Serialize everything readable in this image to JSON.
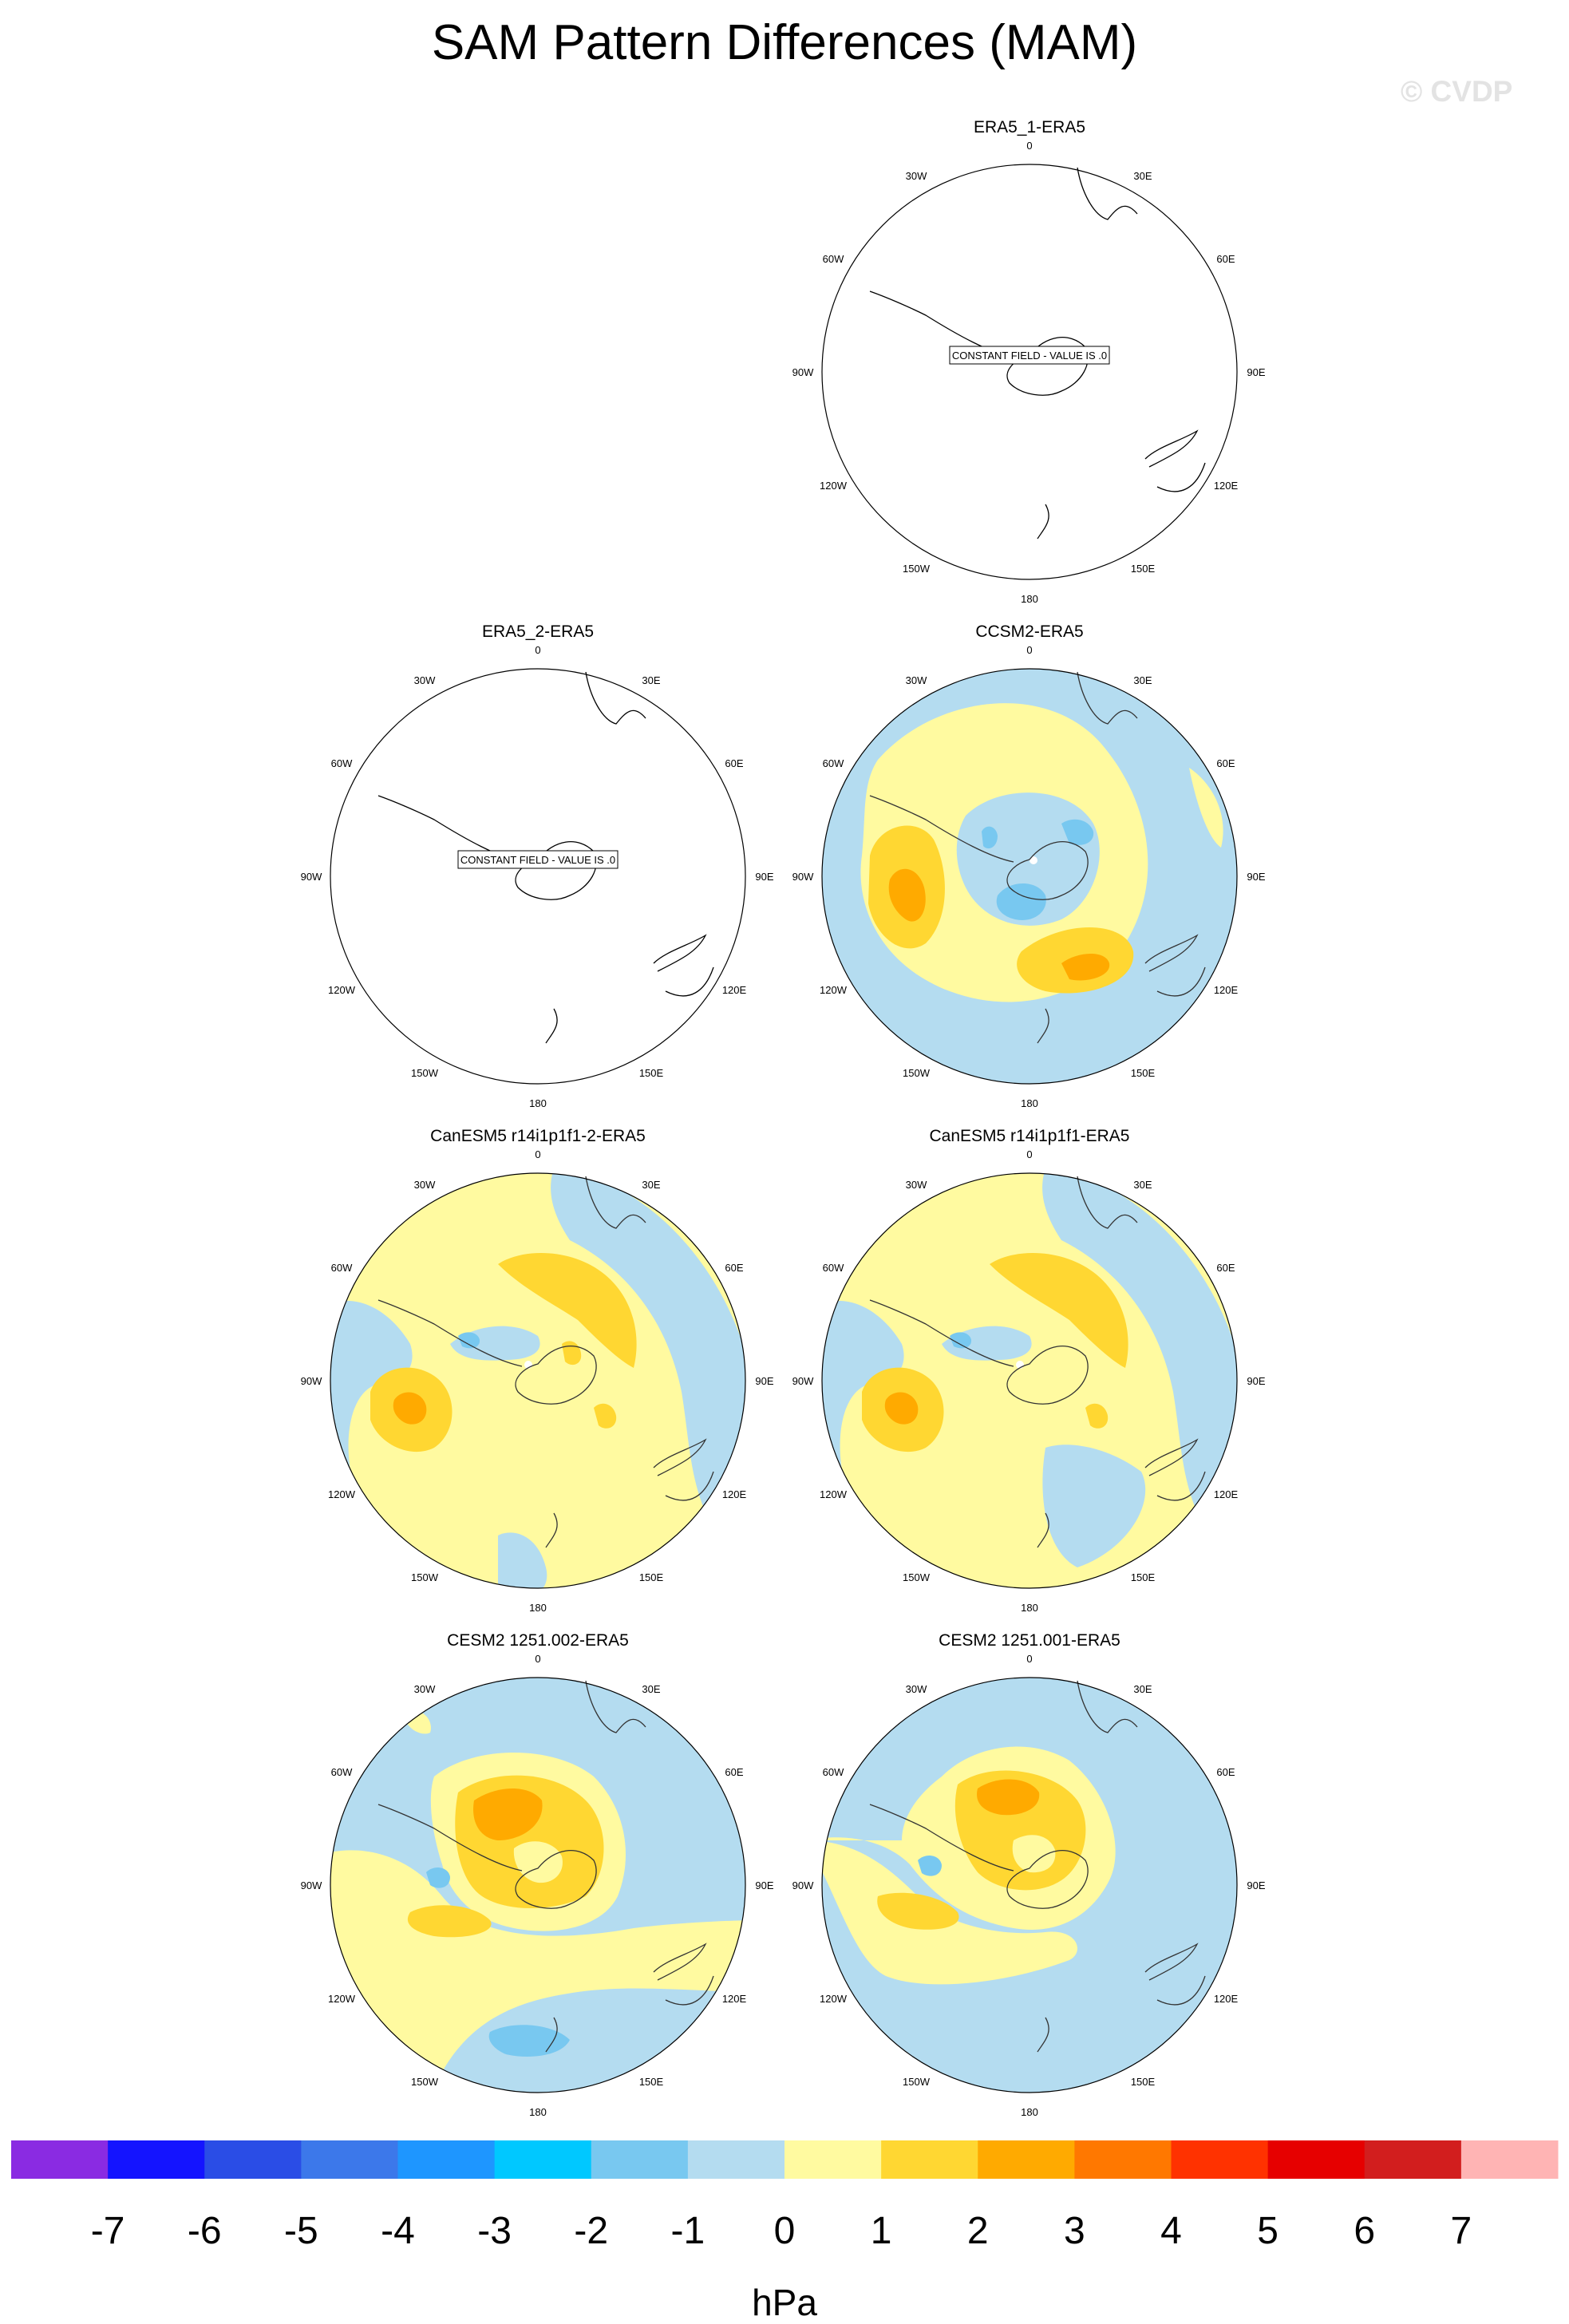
{
  "title": "SAM Pattern Differences (MAM)",
  "watermark": "© CVDP",
  "units": "hPa",
  "colorbar": {
    "labels": [
      "-7",
      "-6",
      "-5",
      "-4",
      "-3",
      "-2",
      "-1",
      "0",
      "1",
      "2",
      "3",
      "4",
      "5",
      "6",
      "7"
    ],
    "colors": [
      "#8a2be2",
      "#1414ff",
      "#2a4de6",
      "#3c78ea",
      "#1e96ff",
      "#00c8ff",
      "#78c8f0",
      "#b4dcf0",
      "#fffaa0",
      "#ffd732",
      "#ffaa00",
      "#ff7800",
      "#ff3200",
      "#e60000",
      "#d21e1e",
      "#ffb4b4"
    ]
  },
  "lon_labels": [
    "0",
    "30E",
    "60E",
    "90E",
    "120E",
    "150E",
    "180",
    "150W",
    "120W",
    "90W",
    "60W",
    "30W"
  ],
  "constant_field_text": "CONSTANT FIELD - VALUE IS .0",
  "panels": [
    {
      "title": "ERA5_1-ERA5",
      "constant": true
    },
    {
      "title": "ERA5_2-ERA5",
      "constant": true
    },
    {
      "title": "CCSM2-ERA5",
      "constant": false
    },
    {
      "title": "CanESM5 r14i1p1f1-2-ERA5",
      "constant": false
    },
    {
      "title": "CanESM5 r14i1p1f1-ERA5",
      "constant": false
    },
    {
      "title": "CESM2 1251.002-ERA5",
      "constant": false
    },
    {
      "title": "CESM2 1251.001-ERA5",
      "constant": false
    }
  ]
}
